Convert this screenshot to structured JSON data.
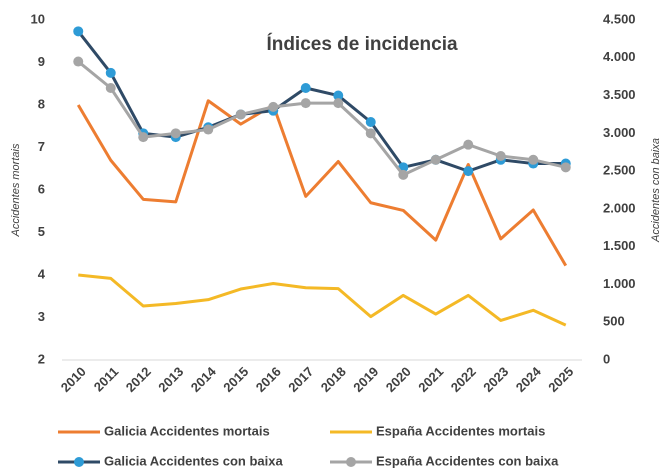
{
  "chart_data": {
    "type": "line",
    "title": "Índices de incidencia",
    "y_label": "Accidentes mortais",
    "y2_label": "Accidentes con baixa",
    "categories": [
      "2010",
      "2011",
      "2012",
      "2013",
      "2014",
      "2015",
      "2016",
      "2017",
      "2018",
      "2019",
      "2020",
      "2021",
      "2022",
      "2023",
      "2024",
      "2025"
    ],
    "ylim": [
      2,
      10
    ],
    "yticks": [
      2,
      3,
      4,
      5,
      6,
      7,
      8,
      9,
      10
    ],
    "y2lim": [
      0,
      4500
    ],
    "y2ticks": [
      0,
      500,
      {
        "value": 1000,
        "label": "1.000"
      },
      {
        "value": 1500,
        "label": "1.500"
      },
      {
        "value": 2000,
        "label": "2.000"
      },
      {
        "value": 2500,
        "label": "2.500"
      },
      {
        "value": 3000,
        "label": "3.000"
      },
      {
        "value": 3500,
        "label": "3.500"
      },
      {
        "value": 4000,
        "label": "4.000"
      },
      {
        "value": 4500,
        "label": "4.500"
      }
    ],
    "grid": false,
    "legend": "bottom",
    "series": [
      {
        "name": "Galicia Accidentes mortais",
        "color": "#ED7D31",
        "values": [
          8.0,
          6.7,
          5.78,
          5.72,
          8.1,
          7.55,
          8.0,
          5.85,
          6.67,
          5.7,
          5.52,
          4.82,
          6.6,
          4.85,
          5.53,
          4.22
        ]
      },
      {
        "name": "España Accidentes mortais",
        "color": "#F4B926",
        "values": [
          4.0,
          3.92,
          3.27,
          3.33,
          3.42,
          3.67,
          3.8,
          3.7,
          3.68,
          3.02,
          3.52,
          3.08,
          3.52,
          2.93,
          3.17,
          2.82
        ]
      },
      {
        "name": "Galicia Accidentes con baixa",
        "color": "#2F4A66",
        "marker_color": "#2E9BD6",
        "axis": "y2",
        "values": [
          4350,
          3800,
          3000,
          2950,
          3080,
          3250,
          3300,
          3600,
          3500,
          3150,
          2550,
          2650,
          2500,
          2650,
          2600,
          2600
        ]
      },
      {
        "name": "España Accidentes con baixa",
        "color": "#A5A5A5",
        "marker_color": "#A5A5A5",
        "axis": "y2",
        "values": [
          3950,
          3600,
          2950,
          3000,
          3050,
          3250,
          3350,
          3400,
          3400,
          3000,
          2450,
          2650,
          2850,
          2700,
          2650,
          2550
        ]
      }
    ]
  }
}
